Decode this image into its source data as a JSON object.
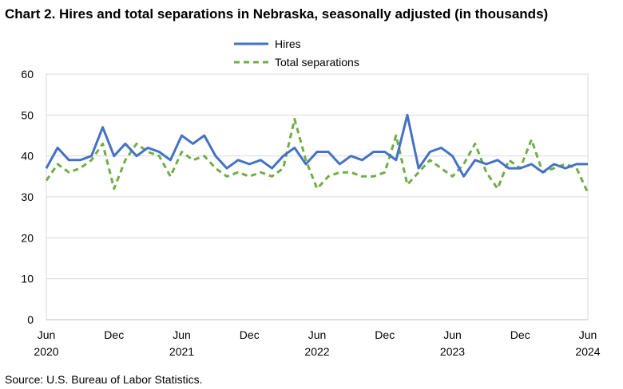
{
  "chart_data": {
    "type": "line",
    "title": "Chart 2. Hires and total separations in Nebraska, seasonally adjusted (in thousands)",
    "source": "Source: U.S. Bureau of Labor Statistics.",
    "xlabel": "",
    "ylabel": "",
    "ylim": [
      0,
      60
    ],
    "yticks": [
      0,
      10,
      20,
      30,
      40,
      50,
      60
    ],
    "grid": true,
    "legend_position": "top-center",
    "x_tick_labels": [
      {
        "index": 0,
        "month": "Jun",
        "year": "2020"
      },
      {
        "index": 6,
        "month": "Dec",
        "year": ""
      },
      {
        "index": 12,
        "month": "Jun",
        "year": "2021"
      },
      {
        "index": 18,
        "month": "Dec",
        "year": ""
      },
      {
        "index": 24,
        "month": "Jun",
        "year": "2022"
      },
      {
        "index": 30,
        "month": "Dec",
        "year": ""
      },
      {
        "index": 36,
        "month": "Jun",
        "year": "2023"
      },
      {
        "index": 42,
        "month": "Dec",
        "year": ""
      },
      {
        "index": 48,
        "month": "Jun",
        "year": "2024"
      }
    ],
    "series": [
      {
        "name": "Hires",
        "color": "#4472C4",
        "style": "solid",
        "values": [
          37,
          42,
          39,
          39,
          40,
          47,
          40,
          43,
          40,
          42,
          41,
          39,
          45,
          43,
          45,
          40,
          37,
          39,
          38,
          39,
          37,
          40,
          42,
          38,
          41,
          41,
          38,
          40,
          39,
          41,
          41,
          39,
          50,
          37,
          41,
          42,
          40,
          35,
          39,
          38,
          39,
          37,
          37,
          38,
          36,
          38,
          37,
          38,
          38
        ]
      },
      {
        "name": "Total separations",
        "color": "#70AD47",
        "style": "dashed",
        "values": [
          34,
          38,
          36,
          37,
          39,
          43,
          32,
          39,
          43,
          41,
          40,
          35,
          41,
          39,
          40,
          37,
          35,
          36,
          35,
          36,
          35,
          37,
          49,
          39,
          32,
          35,
          36,
          36,
          35,
          35,
          36,
          45,
          33,
          36,
          39,
          37,
          35,
          38,
          43,
          36,
          32,
          39,
          37,
          44,
          36,
          37,
          38,
          37,
          31
        ]
      }
    ]
  }
}
